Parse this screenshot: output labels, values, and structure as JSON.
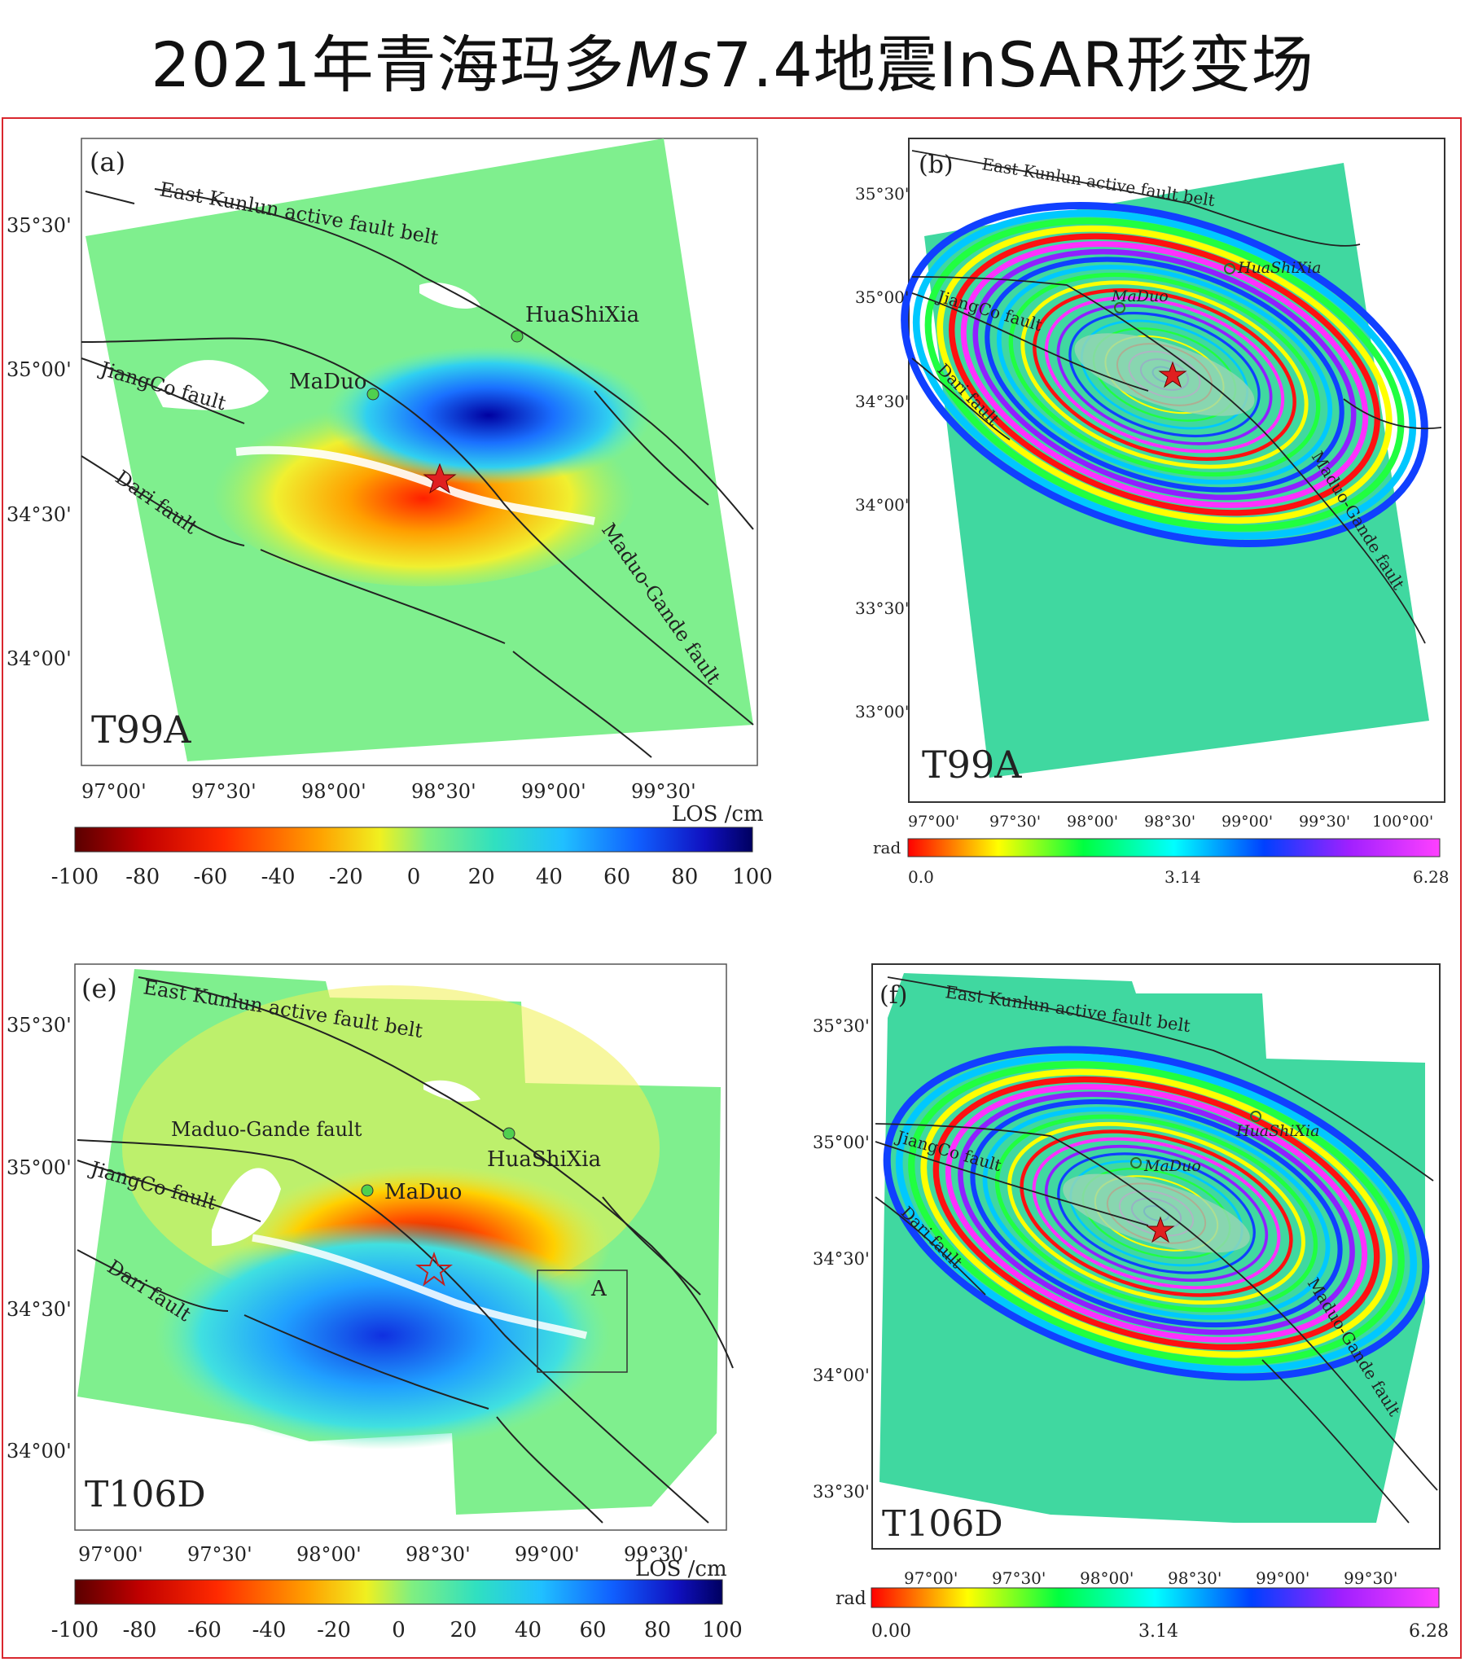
{
  "title": {
    "prefix": "2021年青海玛多",
    "magnitude_italic": "Ms",
    "suffix": "7.4地震InSAR形变场"
  },
  "colors": {
    "frame": "#d9272e",
    "fault": "#222222",
    "station": "#4fd04f",
    "epicenter": "#e02020",
    "background_deformation": "#7fef8e"
  },
  "panels": [
    {
      "id": "a",
      "letter": "(a)",
      "track": "T99A",
      "kind": "los",
      "lat_ticks": [
        "35°30'",
        "35°00'",
        "34°30'",
        "34°00'"
      ],
      "lon_ticks": [
        "97°00'",
        "97°30'",
        "98°00'",
        "98°30'",
        "99°00'",
        "99°30'"
      ],
      "faults": [
        "East Kunlun active fault belt",
        "JiangCo fault",
        "Dari fault",
        "Maduo-Gande fault"
      ],
      "stations": [
        "MaDuo",
        "HuaShiXia"
      ],
      "colorbar": {
        "label": "LOS /cm",
        "ticks": [
          "-100",
          "-80",
          "-60",
          "-40",
          "-20",
          "0",
          "20",
          "40",
          "60",
          "80",
          "100"
        ]
      }
    },
    {
      "id": "b",
      "letter": "(b)",
      "track": "T99A",
      "kind": "phase",
      "lat_ticks": [
        "35°30'",
        "35°00'",
        "34°30'",
        "34°00'",
        "33°30'",
        "33°00'"
      ],
      "lon_ticks": [
        "97°00'",
        "97°30'",
        "98°00'",
        "98°30'",
        "99°00'",
        "99°30'",
        "100°00'"
      ],
      "faults": [
        "East Kunlun active fault belt",
        "JiangCo fault",
        "Dari fault",
        "Maduo-Gande fault"
      ],
      "stations": [
        "MaDuo",
        "HuaShiXia"
      ],
      "colorbar": {
        "label": "rad",
        "ticks": [
          "0.0",
          "3.14",
          "6.28"
        ]
      }
    },
    {
      "id": "e",
      "letter": "(e)",
      "track": "T106D",
      "kind": "los",
      "lat_ticks": [
        "35°30'",
        "35°00'",
        "34°30'",
        "34°00'"
      ],
      "lon_ticks": [
        "97°00'",
        "97°30'",
        "98°00'",
        "98°30'",
        "99°00'",
        "99°30'"
      ],
      "faults": [
        "East Kunlun active fault belt",
        "JiangCo fault",
        "Dari fault",
        "Maduo-Gande fault"
      ],
      "stations": [
        "MaDuo",
        "HuaShiXia"
      ],
      "box_label": "A",
      "colorbar": {
        "label": "LOS /cm",
        "ticks": [
          "-100",
          "-80",
          "-60",
          "-40",
          "-20",
          "0",
          "20",
          "40",
          "60",
          "80",
          "100"
        ]
      }
    },
    {
      "id": "f",
      "letter": "(f)",
      "track": "T106D",
      "kind": "phase",
      "lat_ticks": [
        "35°30'",
        "35°00'",
        "34°30'",
        "34°00'",
        "33°30'"
      ],
      "lon_ticks": [
        "97°00'",
        "97°30'",
        "98°00'",
        "98°30'",
        "99°00'",
        "99°30'"
      ],
      "faults": [
        "East Kunlun active fault belt",
        "JiangCo fault",
        "Dari fault",
        "Maduo-Gande fault"
      ],
      "stations": [
        "MaDuo",
        "HuaShiXia"
      ],
      "colorbar": {
        "label": "rad",
        "ticks": [
          "0.00",
          "3.14",
          "6.28"
        ]
      }
    }
  ]
}
